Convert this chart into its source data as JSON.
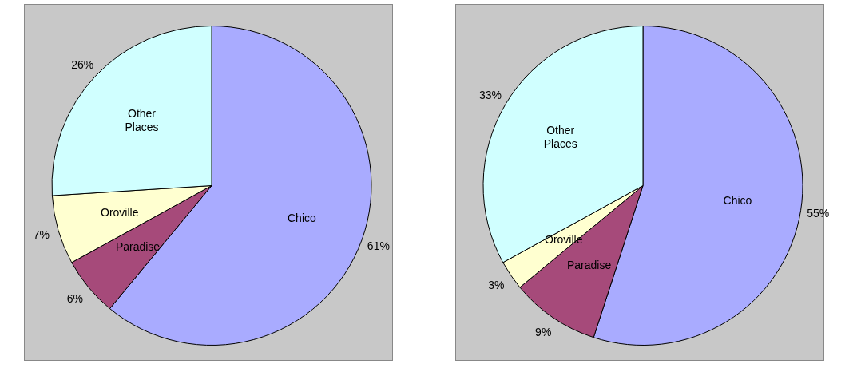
{
  "chart_data": [
    {
      "type": "pie",
      "categories": [
        "Chico",
        "Paradise",
        "Oroville",
        "Other Places"
      ],
      "values": [
        61,
        6,
        7,
        26
      ],
      "colors": [
        "#a9abff",
        "#a64a7a",
        "#ffffd0",
        "#d0ffff"
      ],
      "value_labels": [
        "61%",
        "6%",
        "7%",
        "26%"
      ],
      "legend": false
    },
    {
      "type": "pie",
      "categories": [
        "Chico",
        "Paradise",
        "Oroville",
        "Other Places"
      ],
      "values": [
        55,
        9,
        3,
        33
      ],
      "colors": [
        "#a9abff",
        "#a64a7a",
        "#ffffd0",
        "#d0ffff"
      ],
      "value_labels": [
        "55%",
        "9%",
        "3%",
        "33%"
      ],
      "legend": false
    }
  ]
}
